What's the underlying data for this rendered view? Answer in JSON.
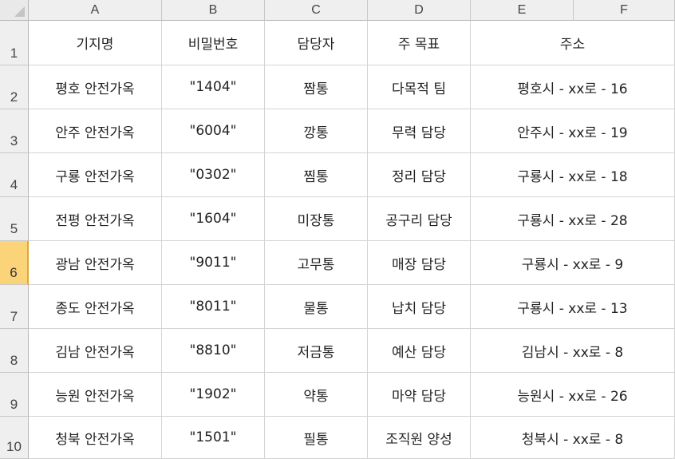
{
  "columns": [
    "A",
    "B",
    "C",
    "D",
    "E",
    "F"
  ],
  "rows": [
    {
      "num": "1",
      "cells": [
        "기지명",
        "비밀번호",
        "담당자",
        "주 목표",
        "주소"
      ]
    },
    {
      "num": "2",
      "cells": [
        "평호 안전가옥",
        "\"1404\"",
        "짬통",
        "다목적 팀",
        "평호시 - xx로 - 16"
      ]
    },
    {
      "num": "3",
      "cells": [
        "안주 안전가옥",
        "\"6004\"",
        "깡통",
        "무력 담당",
        "안주시 - xx로 - 19"
      ]
    },
    {
      "num": "4",
      "cells": [
        "구룡 안전가옥",
        "\"0302\"",
        "찜통",
        "정리 담당",
        "구룡시 - xx로 - 18"
      ]
    },
    {
      "num": "5",
      "cells": [
        "전평 안전가옥",
        "\"1604\"",
        "미장통",
        "공구리 담당",
        "구룡시 - xx로 - 28"
      ]
    },
    {
      "num": "6",
      "cells": [
        "광남 안전가옥",
        "\"9011\"",
        "고무통",
        "매장 담당",
        "구룡시 - xx로 - 9"
      ]
    },
    {
      "num": "7",
      "cells": [
        "종도 안전가옥",
        "\"8011\"",
        "물통",
        "납치 담당",
        "구룡시 - xx로 - 13"
      ]
    },
    {
      "num": "8",
      "cells": [
        "김남 안전가옥",
        "\"8810\"",
        "저금통",
        "예산 담당",
        "김남시 - xx로 - 8"
      ]
    },
    {
      "num": "9",
      "cells": [
        "능원 안전가옥",
        "\"1902\"",
        "약통",
        "마약 담당",
        "능원시 - xx로 - 26"
      ]
    },
    {
      "num": "10",
      "cells": [
        "청북 안전가옥",
        "\"1501\"",
        "필통",
        "조직원 양성",
        "청북시 - xx로 - 8"
      ]
    }
  ],
  "selected_row": "6"
}
